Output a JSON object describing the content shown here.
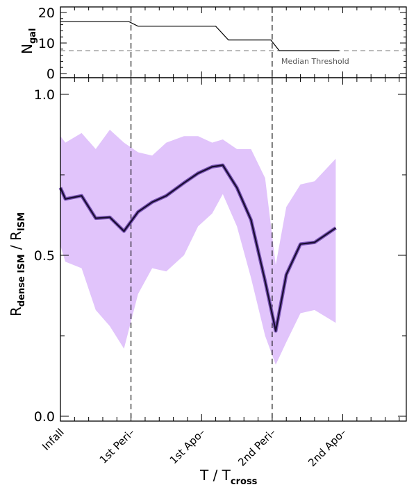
{
  "chart_data": [
    {
      "panel": "top",
      "type": "line",
      "ylabel_main": "N",
      "ylabel_sub": "gal",
      "ylim": [
        0,
        20
      ],
      "yticks": [
        "0",
        "10",
        "20"
      ],
      "x_range": [
        0,
        4.9
      ],
      "threshold": {
        "label": "Median Threshold",
        "value": 7.5
      },
      "series": [
        {
          "x": [
            0,
            0.97,
            1.1,
            2.2,
            2.38,
            2.98,
            3.1,
            3.95
          ],
          "y": [
            17,
            17,
            15.5,
            15.5,
            11,
            11,
            7.5,
            7.5
          ]
        }
      ],
      "colors": {
        "line": "#000000",
        "threshold": "#777777"
      }
    },
    {
      "panel": "bottom",
      "type": "line",
      "ylabel_main": "R",
      "ylabel_sub1": "dense ISM",
      "ylabel_mid": " / R",
      "ylabel_sub2": "ISM",
      "xlabel_main": "T / T",
      "xlabel_sub": "cross",
      "ylim": [
        0,
        1.0
      ],
      "yticks": [
        "0.0",
        "0.5",
        "1.0"
      ],
      "x_range": [
        0,
        4.9
      ],
      "categories": [
        {
          "label": "Infall",
          "x": 0
        },
        {
          "label": "1st Peri–",
          "x": 1
        },
        {
          "label": "1st Apo–",
          "x": 2
        },
        {
          "label": "2nd Peri–",
          "x": 3
        },
        {
          "label": "2nd Apo–",
          "x": 4
        }
      ],
      "vlines_x": [
        1,
        3
      ],
      "series": [
        {
          "x": [
            0,
            0.07,
            0.3,
            0.5,
            0.7,
            0.9,
            1.1,
            1.3,
            1.5,
            1.75,
            1.95,
            2.15,
            2.3,
            2.5,
            2.7,
            2.9,
            3.05,
            3.2,
            3.4,
            3.6,
            3.9
          ],
          "y": [
            0.71,
            0.675,
            0.685,
            0.615,
            0.618,
            0.575,
            0.635,
            0.665,
            0.685,
            0.725,
            0.755,
            0.775,
            0.78,
            0.71,
            0.61,
            0.42,
            0.265,
            0.44,
            0.535,
            0.54,
            0.585
          ],
          "lower": [
            0.53,
            0.48,
            0.46,
            0.33,
            0.28,
            0.21,
            0.38,
            0.46,
            0.45,
            0.5,
            0.59,
            0.63,
            0.69,
            0.59,
            0.43,
            0.25,
            0.16,
            0.23,
            0.32,
            0.33,
            0.29
          ],
          "upper": [
            0.87,
            0.85,
            0.88,
            0.83,
            0.89,
            0.85,
            0.82,
            0.81,
            0.85,
            0.87,
            0.87,
            0.85,
            0.86,
            0.83,
            0.83,
            0.74,
            0.47,
            0.65,
            0.72,
            0.73,
            0.8
          ]
        }
      ],
      "colors": {
        "band": "#e1c4fb",
        "line": "#1a0d33",
        "line_glow": "#7a55b5",
        "vline": "#000000"
      }
    }
  ]
}
